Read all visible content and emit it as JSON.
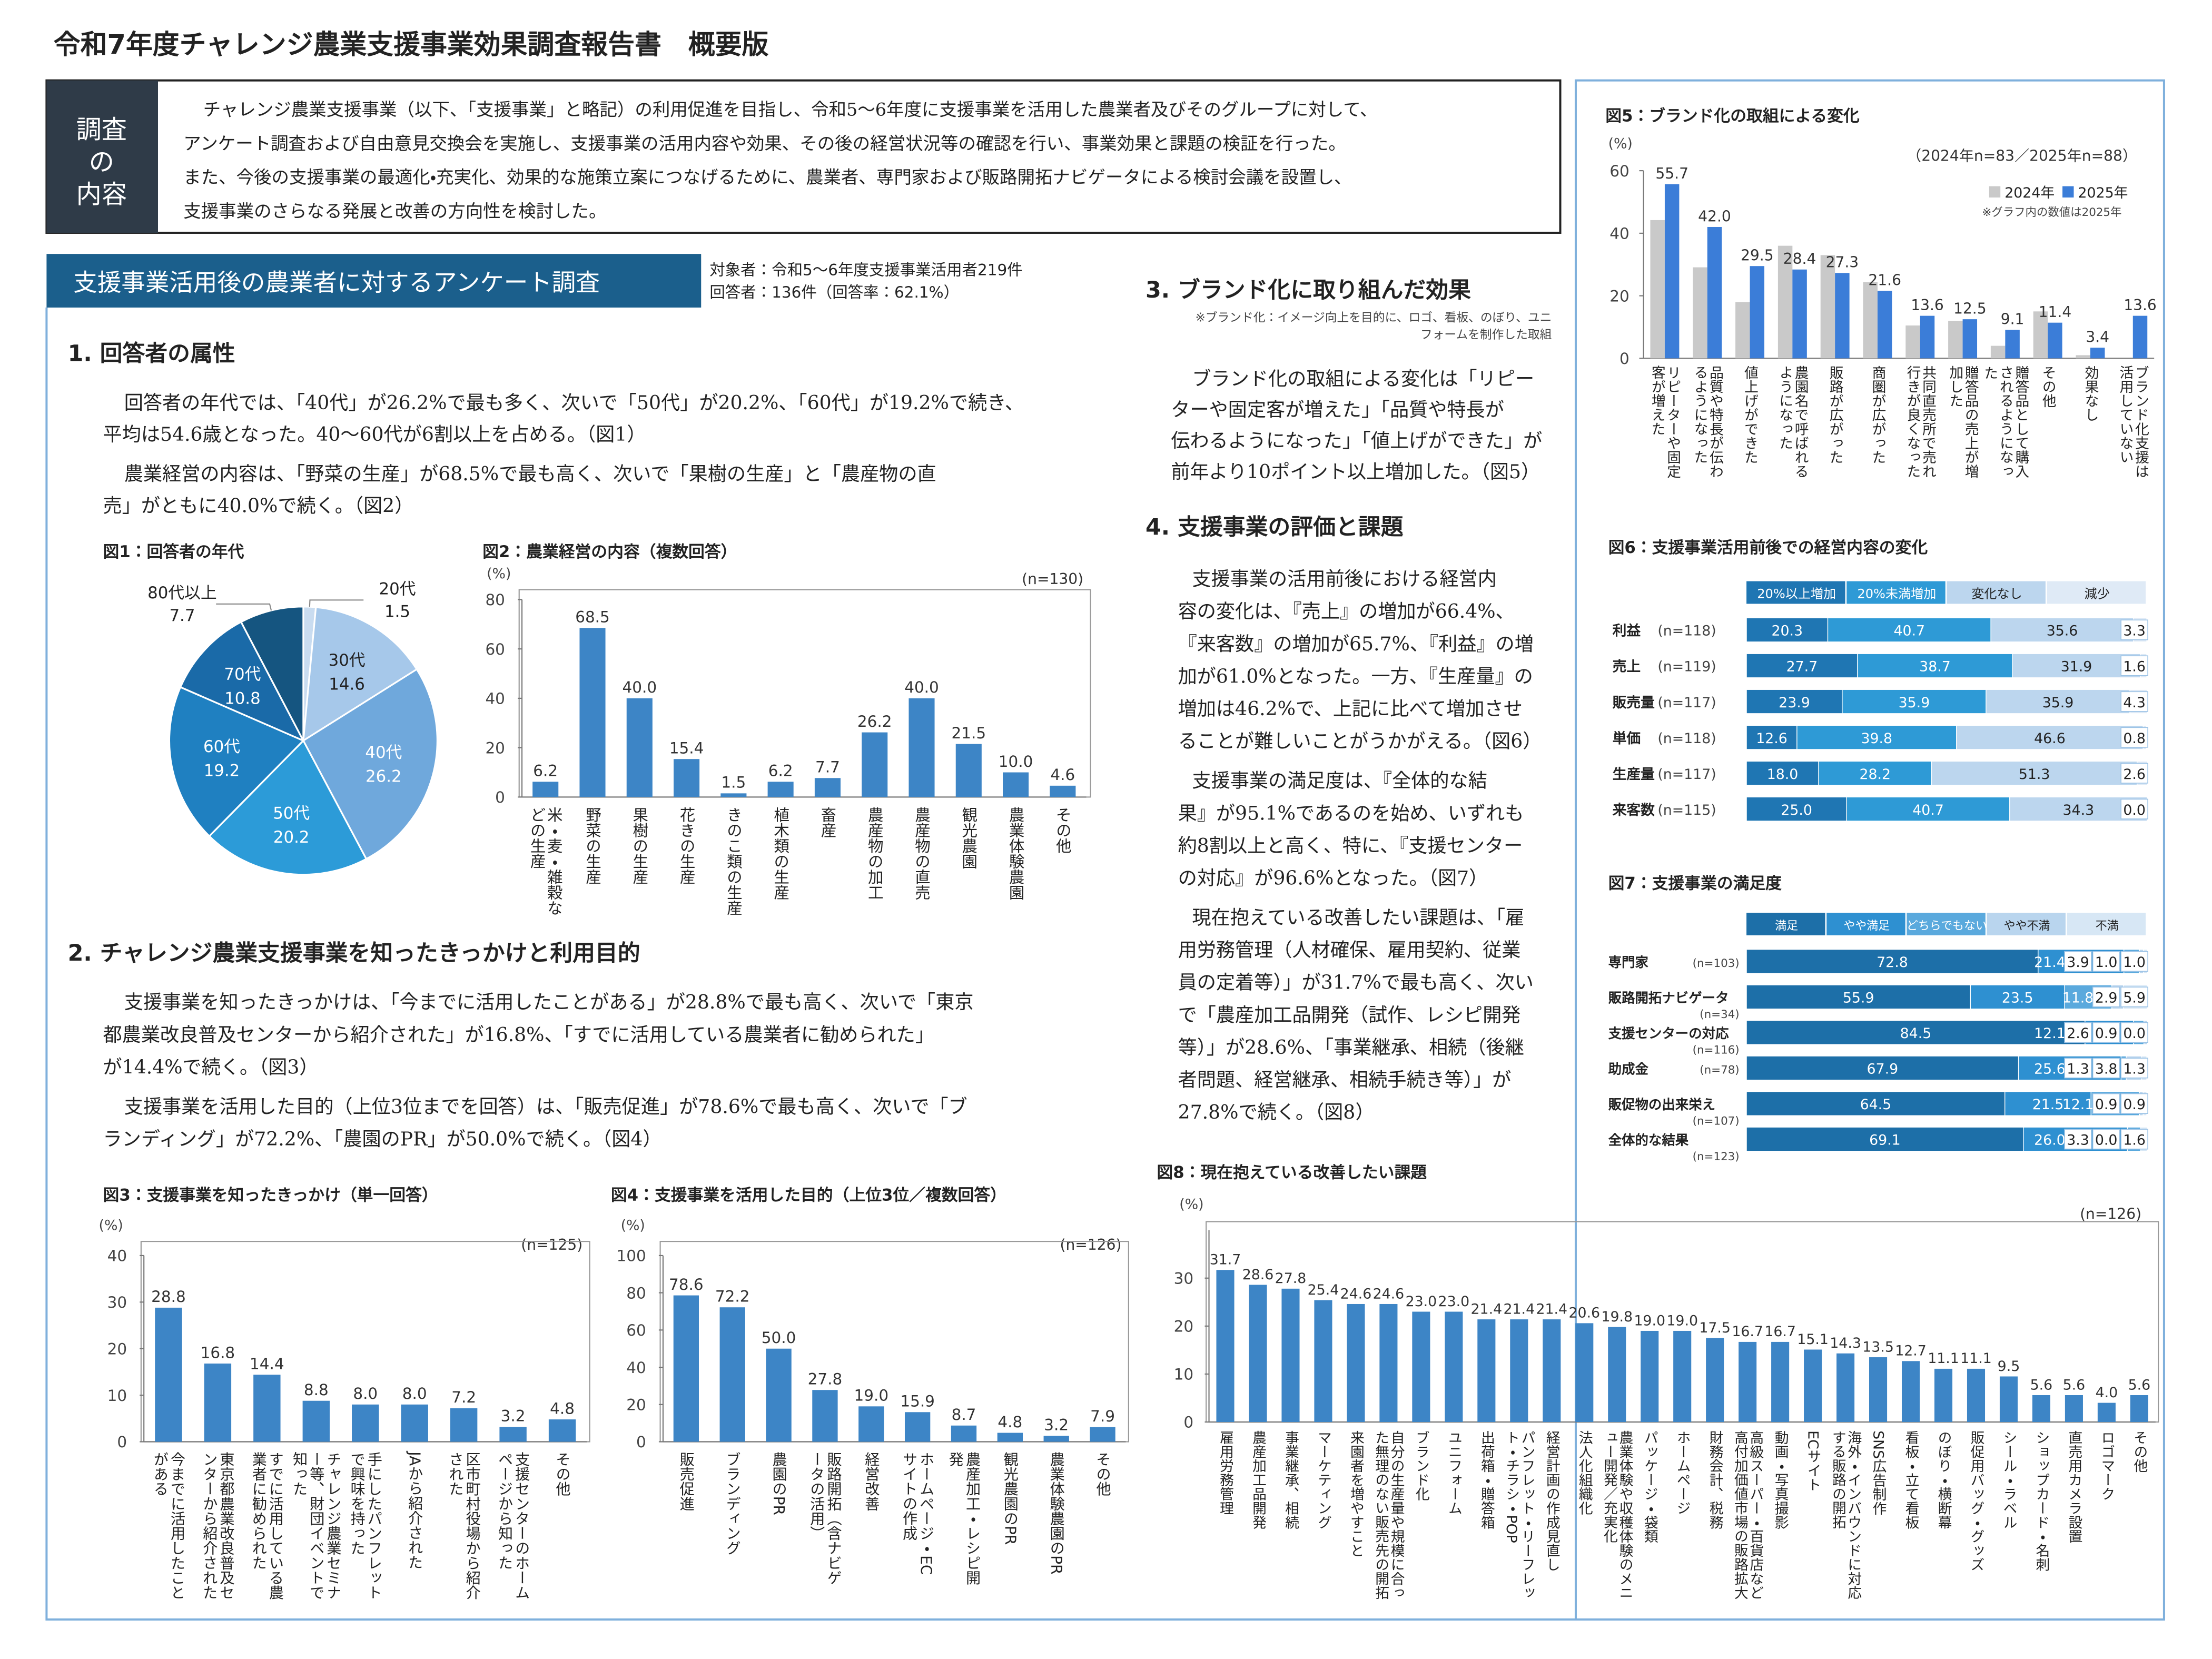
{
  "header": {
    "title": "令和7年度チャレンジ農業支援事業効果調査報告書　概要版"
  },
  "intro": {
    "label": [
      "調査",
      "の",
      "内容"
    ],
    "lines": [
      "チャレンジ農業支援事業（以下、「支援事業」と略記）の利用促進を目指し、令和5～6年度に支援事業を活用した農業者及びそのグループに対して、",
      "アンケート調査および自由意見交換会を実施し、支援事業の活用内容や効果、その後の経営状況等の確認を行い、事業効果と課題の検証を行った。",
      "また、今後の支援事業の最適化・充実化、効果的な施策立案につなげるために、農業者、専門家および販路開拓ナビゲータによる検討会議を設置し、",
      "支援事業のさらなる発展と改善の方向性を検討した。"
    ]
  },
  "survey": {
    "banner": "支援事業活用後の農業者に対するアンケート調査",
    "target_lines": [
      "対象者：令和5～6年度支援事業活用者219件",
      "回答者：136件（回答率：62.1%）"
    ]
  },
  "sections": [
    {
      "heading": "1. 回答者の属性",
      "paragraphs": [
        [
          "回答者の年代では、「40代」が26.2%で最も多く、次いで「50代」が20.2%、「60代」が19.2%で続き、",
          "平均は54.6歳となった。40～60代が6割以上を占める。（図1）"
        ],
        [
          "農業経営の内容は、「野菜の生産」が68.5%で最も高く、次いで「果樹の生産」と「農産物の直",
          "売」がともに40.0%で続く。（図2）"
        ]
      ]
    },
    {
      "heading": "2. チャレンジ農業支援事業を知ったきっかけと利用目的",
      "paragraphs": [
        [
          "支援事業を知ったきっかけは、「今までに活用したことがある」が28.8%で最も高く、次いで「東京",
          "都農業改良普及センターから紹介された」が16.8%、「すでに活用している農業者に勧められた」",
          "が14.4%で続く。（図3）"
        ],
        [
          "支援事業を活用した目的（上位3位までを回答）は、「販売促進」が78.6%で最も高く、次いで「ブ",
          "ランディング」が72.2%、「農園のPR」が50.0%で続く。（図4）"
        ]
      ]
    },
    {
      "heading": "3. ブランド化に取り組んだ効果",
      "note": [
        "※ブランド化：イメージ向上を目的に、ロゴ、看板、のぼり、ユニ",
        "フォームを制作した取組"
      ],
      "paragraphs": [
        [
          "ブランド化の取組による変化は「リピー",
          "ターや固定客が増えた」「品質や特長が",
          "伝わるようになった」「値上げができた」が",
          "前年より10ポイント以上増加した。（図5）"
        ]
      ]
    },
    {
      "heading": "4. 支援事業の評価と課題",
      "paragraphs": [
        [
          "支援事業の活用前後における経営内",
          "容の変化は、『売上』の増加が66.4%、",
          "『来客数』の増加が65.7%、『利益』の増",
          "加が61.0%となった。一方、『生産量』の",
          "増加は46.2%で、上記に比べて増加させ",
          "ることが難しいことがうかがえる。（図6）"
        ],
        [
          "支援事業の満足度は、『全体的な結",
          "果』が95.1%であるのを始め、いずれも",
          "約8割以上と高く、特に、『支援センター",
          "の対応』が96.6%となった。（図7）"
        ],
        [
          "現在抱えている改善したい課題は、「雇",
          "用労務管理（人材確保、雇用契約、従業",
          "員の定着等）」が31.7%で最も高く、次い",
          "で「農産加工品開発（試作、レシピ開発",
          "等）」が28.6%、「事業継承、相続（後継",
          "者問題、経営継承、相続手続き等）」が",
          "27.8%で続く。（図8）"
        ]
      ]
    }
  ],
  "chart_data": [
    {
      "type": "pie",
      "title": "図1：回答者の年代",
      "categories": [
        "20代",
        "30代",
        "40代",
        "50代",
        "60代",
        "70代",
        "80代以上"
      ],
      "values": [
        1.5,
        14.6,
        26.2,
        20.2,
        19.2,
        10.8,
        7.7
      ],
      "colors": [
        "#c9dcf0",
        "#a6c8ea",
        "#6fa8dc",
        "#2c9bd8",
        "#1f80c1",
        "#1a6aa8",
        "#155580"
      ]
    },
    {
      "type": "bar",
      "title": "図2：農業経営の内容（複数回答）",
      "unit_label": "(%)",
      "n_label": "(n=130)",
      "categories": [
        "米・麦・雑穀などの生産",
        "野菜の生産",
        "果樹の生産",
        "花きの生産",
        "きのこ類の生産",
        "植木類の生産",
        "畜産",
        "農産物の加工",
        "農産物の直売",
        "観光農園",
        "農業体験農園",
        "その他"
      ],
      "values": [
        6.2,
        68.5,
        40.0,
        15.4,
        1.5,
        6.2,
        7.7,
        26.2,
        40.0,
        21.5,
        10.0,
        4.6
      ],
      "value_labels": [
        "6.2",
        "68.5",
        "40.0",
        "15.4",
        "1.5",
        "6.2",
        "7.7",
        "26.2",
        "40.0",
        "21.5",
        "10.0",
        "4.6"
      ],
      "color": "#3d85c6",
      "ylim": [
        0,
        80
      ],
      "yticks": [
        0,
        20,
        40,
        60,
        80
      ],
      "grid": false
    },
    {
      "type": "bar",
      "title": "図3：支援事業を知ったきっかけ（単一回答）",
      "unit_label": "(%)",
      "n_label": "(n=125)",
      "categories": [
        "今までに活用したことがある",
        "東京都農業改良普及センターから紹介された",
        "すでに活用している農業者に勧められた",
        "チャレンジ農業セミナー等、財団イベントで知った",
        "手にしたパンフレットで興味を持った",
        "JAから紹介された",
        "区市町村役場から紹介された",
        "支援センターのホームページから知った",
        "その他"
      ],
      "values": [
        28.8,
        16.8,
        14.4,
        8.8,
        8.0,
        8.0,
        7.2,
        3.2,
        4.8
      ],
      "value_labels": [
        "28.8",
        "16.8",
        "14.4",
        "8.8",
        "8.0",
        "8.0",
        "7.2",
        "3.2",
        "4.8"
      ],
      "color": "#3d85c6",
      "ylim": [
        0,
        40
      ],
      "yticks": [
        0,
        10,
        20,
        30,
        40
      ],
      "grid": false
    },
    {
      "type": "bar",
      "title": "図4：支援事業を活用した目的（上位3位／複数回答）",
      "unit_label": "(%)",
      "n_label": "(n=126)",
      "categories": [
        "販売促進",
        "ブランディング",
        "農園のPR",
        "販路開拓（含ナビゲータの活用）",
        "経営改善",
        "ホームページ・ECサイトの作成",
        "農産加工・レシピ開発",
        "観光農園のPR",
        "農業体験農園のPR",
        "その他"
      ],
      "values": [
        78.6,
        72.2,
        50.0,
        27.8,
        19.0,
        15.9,
        8.7,
        4.8,
        3.2,
        7.9
      ],
      "value_labels": [
        "78.6",
        "72.2",
        "50.0",
        "27.8",
        "19.0",
        "15.9",
        "8.7",
        "4.8",
        "3.2",
        "7.9"
      ],
      "color": "#3d85c6",
      "ylim": [
        0,
        100
      ],
      "yticks": [
        0,
        20,
        40,
        60,
        80,
        100
      ],
      "grid": false
    },
    {
      "type": "bar",
      "title": "図5：ブランド化の取組による変化",
      "unit_label": "(%)",
      "n_label": "（2024年n=83／2025年n=88）",
      "note": "※グラフ内の数値は2025年",
      "categories": [
        "リピーターや固定客が増えた",
        "品質や特長が伝わるようになった",
        "値上げができた",
        "農園名で呼ばれるようになった",
        "販路が広がった",
        "商圏が広がった",
        "共同直売所で売れ行きが良くなった",
        "贈答品の売上が増加した",
        "贈答品として購入されるようになった",
        "その他",
        "効果なし",
        "ブランド化支援は活用していない"
      ],
      "series": [
        {
          "name": "2024年",
          "color": "#c9c9c9",
          "values": [
            44.2,
            29.1,
            18.0,
            36.0,
            33.0,
            24.4,
            10.5,
            12.0,
            4.0,
            15.0,
            1.0,
            null
          ]
        },
        {
          "name": "2025年",
          "color": "#3b7dd8",
          "values": [
            55.7,
            42.0,
            29.5,
            28.4,
            27.3,
            21.6,
            13.6,
            12.5,
            9.1,
            11.4,
            3.4,
            13.6
          ],
          "value_labels": [
            "55.7",
            "42.0",
            "29.5",
            "28.4",
            "27.3",
            "21.6",
            "13.6",
            "12.5",
            "9.1",
            "11.4",
            "3.4",
            "13.6"
          ]
        }
      ],
      "ylim": [
        0,
        60
      ],
      "yticks": [
        0,
        20,
        40,
        60
      ],
      "grid": false
    },
    {
      "type": "stackedbar",
      "title": "図6：支援事業活用前後での経営内容の変化",
      "categories": [
        "利益",
        "売上",
        "販売量",
        "単価",
        "生産量",
        "来客数"
      ],
      "n_labels": [
        "(n=118)",
        "(n=119)",
        "(n=117)",
        "(n=118)",
        "(n=117)",
        "(n=115)"
      ],
      "xlim": [
        0,
        100
      ],
      "series": [
        {
          "name": "20%以上増加",
          "color": "#1f76b3",
          "values": [
            20.3,
            27.7,
            23.9,
            12.6,
            18.0,
            25.0
          ],
          "value_labels": [
            "20.3",
            "27.7",
            "23.9",
            "12.6",
            "18.0",
            "25.0"
          ]
        },
        {
          "name": "20%未満増加",
          "color": "#2e9ad6",
          "values": [
            40.7,
            38.7,
            35.9,
            39.8,
            28.2,
            40.7
          ]
        },
        {
          "name": "変化なし",
          "color": "#bcd6ee",
          "values": [
            35.6,
            31.9,
            35.9,
            46.6,
            51.3,
            34.3
          ]
        },
        {
          "name": "減少",
          "color": "#dfeaf6",
          "values": [
            3.3,
            1.6,
            4.3,
            0.8,
            2.6,
            0.0
          ],
          "value_labels": [
            "3.3",
            "1.6",
            "4.3",
            "0.8",
            "2.6",
            "0.0"
          ]
        }
      ]
    },
    {
      "type": "stackedbar",
      "title": "図7：支援事業の満足度",
      "categories": [
        "専門家",
        "販路開拓ナビゲータ",
        "支援センターの対応",
        "助成金",
        "販促物の出来栄え",
        "全体的な結果"
      ],
      "n_labels": [
        "(n=103)",
        "(n=34)",
        "(n=116)",
        "(n=78)",
        "(n=107)",
        "(n=123)"
      ],
      "xlim": [
        0,
        100
      ],
      "series": [
        {
          "name": "満足",
          "color": "#1d6fa8",
          "values": [
            72.8,
            55.9,
            84.5,
            67.9,
            64.5,
            69.1
          ]
        },
        {
          "name": "やや満足",
          "color": "#2e90d1",
          "values": [
            21.4,
            23.5,
            12.1,
            25.6,
            21.5,
            26.0
          ],
          "value_labels": [
            "21.4",
            "23.5",
            "12.1",
            "25.6",
            "21.5",
            "26.0"
          ]
        },
        {
          "name": "どちらでもない",
          "color": "#5aa9dd",
          "values": [
            3.9,
            11.8,
            2.6,
            1.3,
            12.1,
            3.3
          ]
        },
        {
          "name": "やや不満",
          "color": "#b9d5ee",
          "values": [
            1.0,
            2.9,
            0.9,
            3.8,
            0.9,
            0.0
          ],
          "value_labels": [
            "1.0",
            "2.9",
            "0.9",
            "3.8",
            "0.9",
            "0.0"
          ]
        },
        {
          "name": "不満",
          "color": "#d7e7f5",
          "values": [
            1.0,
            5.9,
            0.0,
            1.3,
            0.9,
            1.6
          ],
          "value_labels": [
            "1.0",
            "5.9",
            "0.0",
            "1.3",
            "0.9",
            "1.6"
          ]
        }
      ]
    },
    {
      "type": "bar",
      "title": "図8：現在抱えている改善したい課題",
      "unit_label": "(%)",
      "n_label": "(n=126)",
      "categories": [
        "雇用労務管理",
        "農産加工品開発",
        "事業継承、相続",
        "マーケティング",
        "来園者を増やすこと",
        "自分の生産量や規模に合った無理のない販売先の開拓",
        "ブランド化",
        "ユニフォーム",
        "出荷箱・贈答箱",
        "パンフレット・リーフレット・チラシ・POP",
        "経営計画の作成見直し",
        "法人化組織化",
        "農業体験や収穫体験のメニュー開発／充実化",
        "パッケージ・袋類",
        "ホームページ",
        "財務会計、税務",
        "高級スーパー・百貨店など高付加価値市場の販路拡大",
        "動画・写真撮影",
        "ECサイト",
        "海外・インバウンドに対応する販路の開拓",
        "SNS広告制作",
        "看板・立て看板",
        "のぼり・横断幕",
        "販促用バッグ・グッズ",
        "シール・ラベル",
        "ショップカード・名刺",
        "直売用カメラ設置",
        "ロゴマーク",
        "その他"
      ],
      "values": [
        31.7,
        28.6,
        27.8,
        25.4,
        24.6,
        24.6,
        23.0,
        23.0,
        21.4,
        21.4,
        21.4,
        20.6,
        19.8,
        19.0,
        19.0,
        17.5,
        16.7,
        16.7,
        15.1,
        14.3,
        13.5,
        12.7,
        11.1,
        11.1,
        9.5,
        5.6,
        5.6,
        4.0,
        5.6
      ],
      "value_labels": [
        "31.7",
        "28.6",
        "27.8",
        "25.4",
        "24.6",
        "24.6",
        "23.0",
        "23.0",
        "21.4",
        "21.4",
        "21.4",
        "20.6",
        "19.8",
        "19.0",
        "19.0",
        "17.5",
        "16.7",
        "16.7",
        "15.1",
        "14.3",
        "13.5",
        "12.7",
        "11.1",
        "11.1",
        "9.5",
        "5.6",
        "5.6",
        "4.0",
        "5.6"
      ],
      "color": "#3d85c6",
      "ylim": [
        0,
        40
      ],
      "yticks": [
        0,
        10,
        20,
        30
      ],
      "grid": false
    }
  ]
}
